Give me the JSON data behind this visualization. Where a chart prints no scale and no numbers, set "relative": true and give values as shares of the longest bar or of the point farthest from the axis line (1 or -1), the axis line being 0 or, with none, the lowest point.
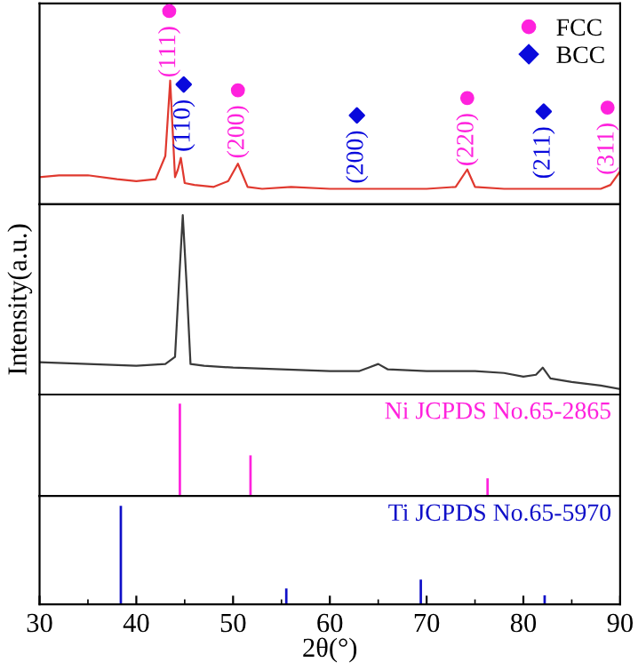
{
  "chart_data": [
    {
      "type": "line",
      "relative": true,
      "xlim": [
        30,
        90
      ],
      "tick_labels": false,
      "legend": "top right",
      "series": [
        {
          "type": "line",
          "color": "#e0392f",
          "x": [
            30,
            32,
            35,
            38,
            40,
            42,
            43,
            43.5,
            44,
            44.3,
            44.6,
            45,
            46,
            48,
            49.5,
            50.5,
            51.5,
            53,
            56,
            60,
            63,
            66,
            70,
            73,
            74.2,
            75,
            78,
            82,
            85,
            88,
            89,
            90
          ],
          "values": [
            0.14,
            0.15,
            0.15,
            0.13,
            0.12,
            0.13,
            0.25,
            0.64,
            0.14,
            0.18,
            0.24,
            0.11,
            0.1,
            0.09,
            0.12,
            0.21,
            0.09,
            0.08,
            0.09,
            0.08,
            0.08,
            0.08,
            0.08,
            0.09,
            0.18,
            0.09,
            0.08,
            0.08,
            0.08,
            0.08,
            0.1,
            0.17
          ]
        },
        {
          "type": "scatter",
          "name": "FCC",
          "color": "#ff22dd",
          "marker": "circle",
          "x": [
            43.4,
            50.5,
            74.2,
            88.7
          ],
          "values": [
            1.0,
            0.59,
            0.55,
            0.5
          ]
        },
        {
          "type": "scatter",
          "name": "BCC",
          "color": "#0a0adc",
          "marker": "diamond",
          "x": [
            44.9,
            62.8,
            82.1
          ],
          "values": [
            0.62,
            0.46,
            0.48
          ]
        }
      ],
      "annotations": [
        {
          "text": "(111)",
          "x": 43.4,
          "y": 1.0
        },
        {
          "text": "(110)",
          "x": 44.9,
          "y": 0.62
        },
        {
          "text": "(200)",
          "x": 50.5,
          "y": 0.59
        },
        {
          "text": "(200)",
          "x": 62.8,
          "y": 0.46
        },
        {
          "text": "(220)",
          "x": 74.2,
          "y": 0.55
        },
        {
          "text": "(211)",
          "x": 82.1,
          "y": 0.48
        },
        {
          "text": "(311)",
          "x": 88.7,
          "y": 0.5
        }
      ]
    },
    {
      "type": "line",
      "relative": true,
      "xlim": [
        30,
        90
      ],
      "tick_labels": false,
      "ylabel": "Intensity(a.u.)",
      "series": [
        {
          "color": "#3a3a3a",
          "x": [
            30,
            35,
            40,
            43,
            44,
            44.5,
            44.8,
            45.2,
            45.6,
            47,
            50,
            55,
            60,
            63,
            64,
            65,
            66,
            70,
            75,
            78,
            80,
            81.3,
            82,
            82.8,
            85,
            88,
            90
          ],
          "values": [
            0.18,
            0.17,
            0.16,
            0.17,
            0.21,
            0.71,
            1.0,
            0.61,
            0.17,
            0.16,
            0.15,
            0.14,
            0.13,
            0.13,
            0.15,
            0.17,
            0.14,
            0.13,
            0.13,
            0.12,
            0.1,
            0.11,
            0.15,
            0.09,
            0.07,
            0.05,
            0.03
          ]
        }
      ]
    },
    {
      "type": "bar",
      "relative": true,
      "xlim": [
        30,
        90
      ],
      "tick_labels": false,
      "series": [
        {
          "color": "#ff22dd",
          "x": [
            44.5,
            51.8,
            76.3
          ],
          "values": [
            1.0,
            0.44,
            0.19
          ]
        }
      ],
      "annotations": [
        "Ni JCPDS No.65-2865"
      ]
    },
    {
      "type": "bar",
      "relative": true,
      "xlim": [
        30,
        90
      ],
      "xticks": [
        30,
        40,
        50,
        60,
        70,
        80,
        90
      ],
      "tick_labels": "x",
      "xlabel": "2θ(°)",
      "series": [
        {
          "color": "#1010c8",
          "x": [
            38.4,
            55.5,
            69.4,
            82.2
          ],
          "values": [
            1.0,
            0.16,
            0.25,
            0.09
          ]
        }
      ],
      "annotations": [
        "Ti JCPDS No.65-5970"
      ]
    }
  ]
}
